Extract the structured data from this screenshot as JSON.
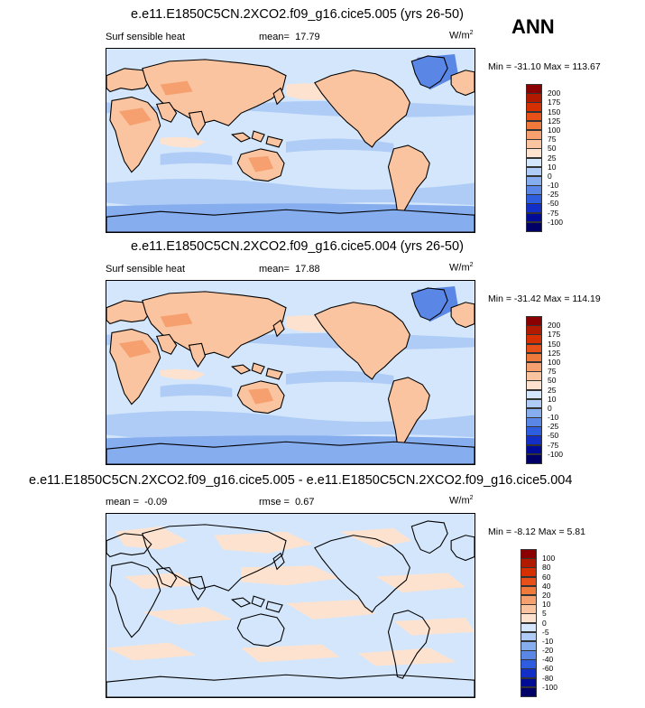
{
  "season": "ANN",
  "panels": [
    {
      "title": "e.e11.E1850C5CN.2XCO2.f09_g16.cice5.005 (yrs 26-50)",
      "variable": "Surf sensible heat",
      "mean_label": "mean=",
      "mean": "17.79",
      "units_base": "W/m",
      "units_exp": "2",
      "minmax": "Min = -31.10 Max = 113.67",
      "levels": [
        "200",
        "175",
        "150",
        "125",
        "100",
        "75",
        "50",
        "25",
        "10",
        "0",
        "-10",
        "-25",
        "-50",
        "-75",
        "-100"
      ],
      "colors": [
        "#8b0000",
        "#b21a00",
        "#d63000",
        "#e8501a",
        "#f07a3c",
        "#f6a070",
        "#fac4a0",
        "#fde3cf",
        "#d4e6fb",
        "#aeccf5",
        "#86adee",
        "#5a86e6",
        "#2f5de0",
        "#1230c8",
        "#000b96",
        "#000066"
      ]
    },
    {
      "title": "e.e11.E1850C5CN.2XCO2.f09_g16.cice5.004 (yrs 26-50)",
      "variable": "Surf sensible heat",
      "mean_label": "mean=",
      "mean": "17.88",
      "units_base": "W/m",
      "units_exp": "2",
      "minmax": "Min = -31.42 Max = 114.19",
      "levels": [
        "200",
        "175",
        "150",
        "125",
        "100",
        "75",
        "50",
        "25",
        "10",
        "0",
        "-10",
        "-25",
        "-50",
        "-75",
        "-100"
      ],
      "colors": [
        "#8b0000",
        "#b21a00",
        "#d63000",
        "#e8501a",
        "#f07a3c",
        "#f6a070",
        "#fac4a0",
        "#fde3cf",
        "#d4e6fb",
        "#aeccf5",
        "#86adee",
        "#5a86e6",
        "#2f5de0",
        "#1230c8",
        "#000b96",
        "#000066"
      ]
    },
    {
      "title": "e.e11.E1850C5CN.2XCO2.f09_g16.cice5.005 - e.e11.E1850C5CN.2XCO2.f09_g16.cice5.004",
      "mean_label": "mean =",
      "mean": "-0.09",
      "rmse_label": "rmse =",
      "rmse": "0.67",
      "units_base": "W/m",
      "units_exp": "2",
      "minmax": "Min = -8.12 Max =  5.81",
      "levels": [
        "100",
        "80",
        "60",
        "40",
        "20",
        "10",
        "5",
        "0",
        "-5",
        "-10",
        "-20",
        "-40",
        "-60",
        "-80",
        "-100"
      ],
      "colors": [
        "#8b0000",
        "#b21a00",
        "#d63000",
        "#e8501a",
        "#f07a3c",
        "#f6a070",
        "#fac4a0",
        "#fde3cf",
        "#d4e6fb",
        "#aeccf5",
        "#86adee",
        "#5a86e6",
        "#2f5de0",
        "#1230c8",
        "#000b96",
        "#000066"
      ]
    }
  ],
  "chart_data": [
    {
      "type": "heatmap",
      "title": "e.e11.E1850C5CN.2XCO2.f09_g16.cice5.005 (yrs 26-50)",
      "variable": "Surf sensible heat",
      "units": "W/m2",
      "mean": 17.79,
      "min": -31.1,
      "max": 113.67,
      "contour_levels": [
        -100,
        -75,
        -50,
        -25,
        -10,
        0,
        10,
        25,
        50,
        75,
        100,
        125,
        150,
        175,
        200
      ]
    },
    {
      "type": "heatmap",
      "title": "e.e11.E1850C5CN.2XCO2.f09_g16.cice5.004 (yrs 26-50)",
      "variable": "Surf sensible heat",
      "units": "W/m2",
      "mean": 17.88,
      "min": -31.42,
      "max": 114.19,
      "contour_levels": [
        -100,
        -75,
        -50,
        -25,
        -10,
        0,
        10,
        25,
        50,
        75,
        100,
        125,
        150,
        175,
        200
      ]
    },
    {
      "type": "heatmap",
      "title": "e.e11.E1850C5CN.2XCO2.f09_g16.cice5.005 - e.e11.E1850C5CN.2XCO2.f09_g16.cice5.004",
      "units": "W/m2",
      "mean": -0.09,
      "rmse": 0.67,
      "min": -8.12,
      "max": 5.81,
      "contour_levels": [
        -100,
        -80,
        -60,
        -40,
        -20,
        -10,
        -5,
        0,
        5,
        10,
        20,
        40,
        60,
        80,
        100
      ]
    }
  ]
}
